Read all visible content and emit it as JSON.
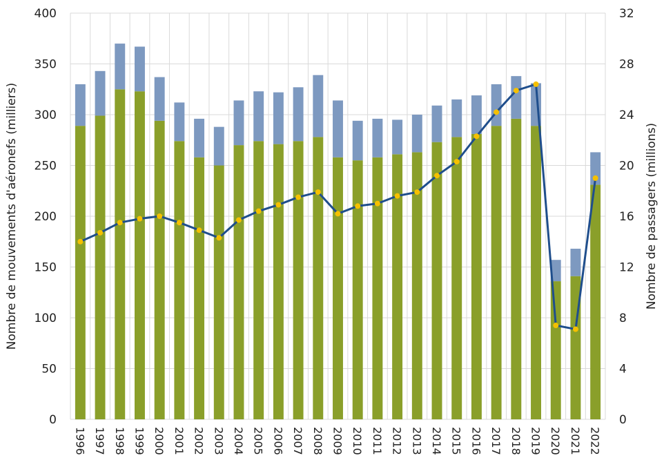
{
  "chart_data": {
    "type": "bar",
    "categories": [
      "1996",
      "1997",
      "1998",
      "1999",
      "2000",
      "2001",
      "2002",
      "2003",
      "2004",
      "2005",
      "2006",
      "2007",
      "2008",
      "2009",
      "2010",
      "2011",
      "2012",
      "2013",
      "2014",
      "2015",
      "2016",
      "2017",
      "2018",
      "2019",
      "2020",
      "2021",
      "2022"
    ],
    "series": [
      {
        "kind": "bar-bottom",
        "axis": "left",
        "color": "#8a9f2a",
        "values": [
          289,
          299,
          325,
          323,
          294,
          274,
          258,
          250,
          270,
          274,
          271,
          274,
          278,
          258,
          255,
          258,
          261,
          263,
          273,
          278,
          281,
          289,
          296,
          289,
          136,
          141,
          231
        ]
      },
      {
        "kind": "bar-stack-top",
        "axis": "left",
        "color": "#7d99c0",
        "values": [
          41,
          44,
          45,
          44,
          43,
          38,
          38,
          38,
          44,
          49,
          51,
          53,
          61,
          56,
          39,
          38,
          34,
          37,
          36,
          37,
          38,
          41,
          42,
          42,
          21,
          27,
          32
        ]
      },
      {
        "kind": "line",
        "axis": "right",
        "color": "#1f4e8c",
        "marker_color": "#f5c000",
        "values": [
          14.0,
          14.7,
          15.5,
          15.8,
          16.0,
          15.5,
          14.9,
          14.3,
          15.7,
          16.4,
          16.9,
          17.5,
          17.9,
          16.2,
          16.8,
          17.0,
          17.6,
          17.9,
          19.2,
          20.3,
          22.3,
          24.2,
          25.9,
          26.4,
          7.4,
          7.1,
          19.0
        ]
      }
    ],
    "ylabel": "Nombre de mouvements d'aéronefs (milliers)",
    "y2label": "Nombre de passagers (millions)",
    "ylim": [
      0,
      400
    ],
    "y2lim": [
      0,
      32
    ],
    "yticks": [
      "0",
      "50",
      "100",
      "150",
      "200",
      "250",
      "300",
      "350",
      "400"
    ],
    "y2ticks": [
      "0",
      "4",
      "8",
      "12",
      "16",
      "20",
      "24",
      "28",
      "32"
    ],
    "grid": true,
    "legend": "none"
  }
}
